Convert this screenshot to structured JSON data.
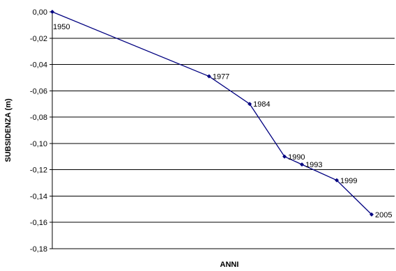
{
  "chart_data": {
    "type": "line",
    "title": "",
    "xlabel": "ANNI",
    "ylabel": "SUBSIDENZA (m)",
    "ylim": [
      -0.18,
      0.0
    ],
    "yticks": [
      "0,00",
      "-0,02",
      "-0,04",
      "-0,06",
      "-0,08",
      "-0,10",
      "-0,12",
      "-0,14",
      "-0,16",
      "-0,18"
    ],
    "ytick_values": [
      0.0,
      -0.02,
      -0.04,
      -0.06,
      -0.08,
      -0.1,
      -0.12,
      -0.14,
      -0.16,
      -0.18
    ],
    "xlim": [
      1950,
      2005
    ],
    "grid": true,
    "series": [
      {
        "x": [
          1950,
          1977,
          1984,
          1990,
          1993,
          1999,
          2005
        ],
        "y": [
          0.0,
          -0.049,
          -0.07,
          -0.11,
          -0.116,
          -0.128,
          -0.154
        ],
        "labels": [
          "1950",
          "1977",
          "1984",
          "1990",
          "1993",
          "1999",
          "2005"
        ],
        "color": "#000080"
      }
    ]
  }
}
